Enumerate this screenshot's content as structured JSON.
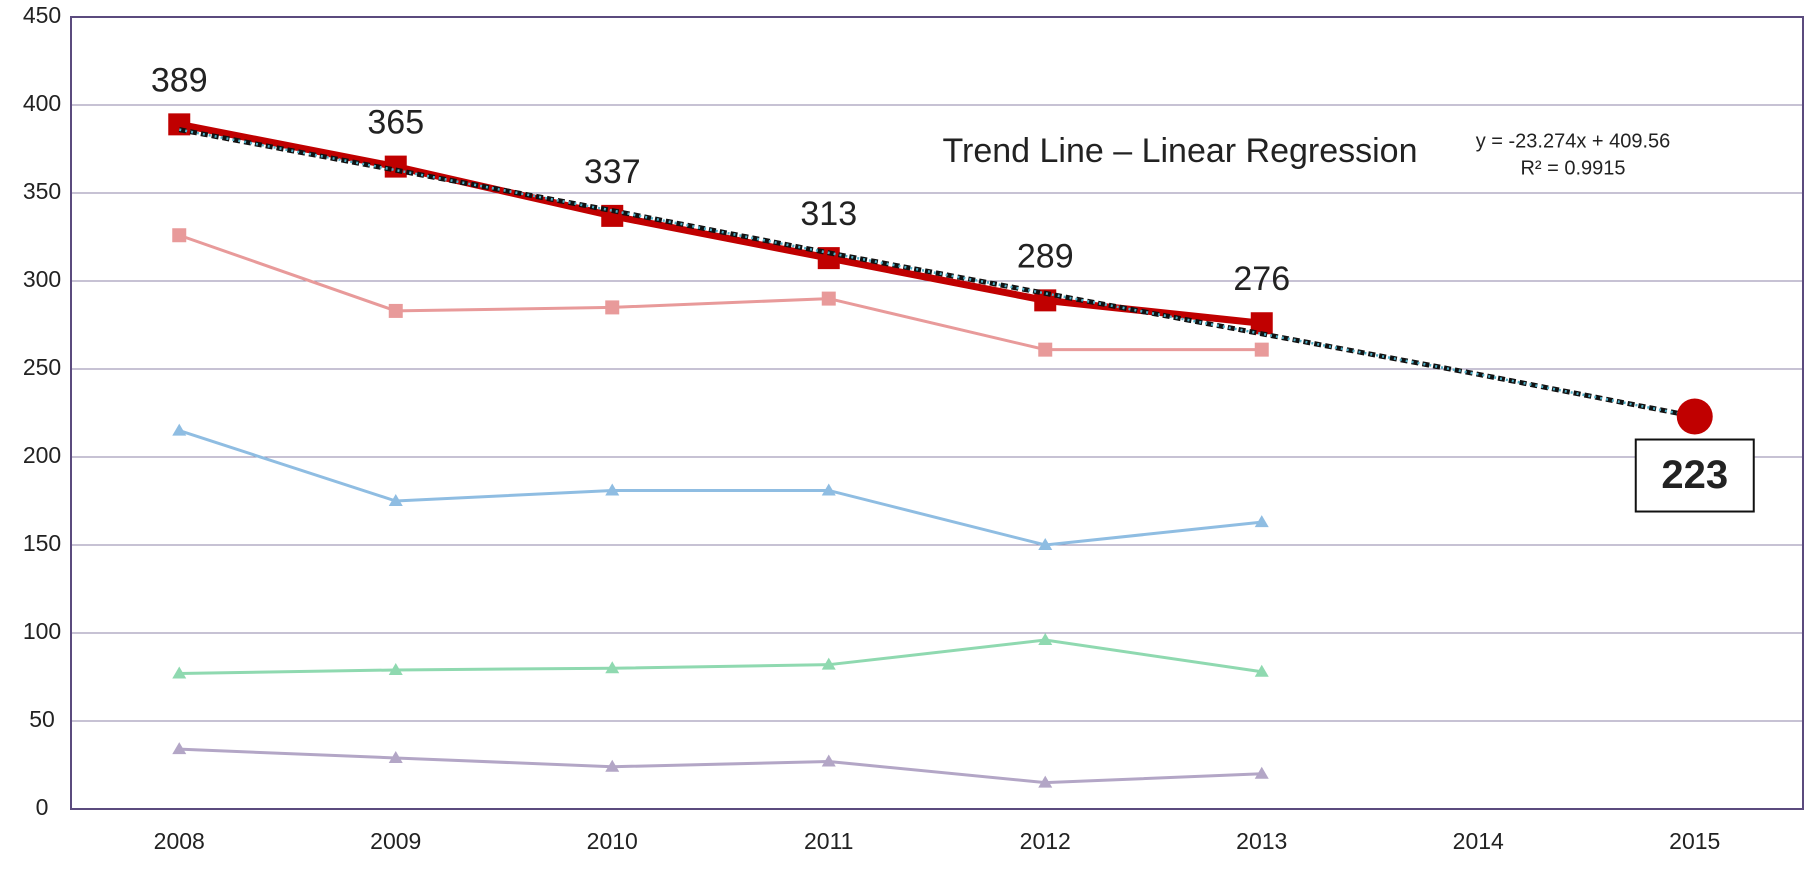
{
  "chart_data": {
    "type": "line",
    "title": "Trend Line – Linear Regression",
    "annotations": [
      "y = -23.274x + 409.56",
      "R² = 0.9915"
    ],
    "categories": [
      "2008",
      "2009",
      "2010",
      "2011",
      "2012",
      "2013",
      "2014",
      "2015"
    ],
    "series": [
      {
        "color": "#e89a9a",
        "marker": "square",
        "values": [
          326,
          283,
          285,
          290,
          261,
          261,
          null,
          null
        ]
      },
      {
        "color": "#8fbde2",
        "marker": "triangle",
        "values": [
          215,
          175,
          181,
          181,
          150,
          163,
          null,
          null
        ]
      },
      {
        "color": "#8fd9b0",
        "marker": "triangle",
        "values": [
          77,
          79,
          80,
          82,
          96,
          78,
          null,
          null
        ]
      },
      {
        "color": "#b3a6c6",
        "marker": "triangle",
        "values": [
          34,
          29,
          24,
          27,
          15,
          20,
          null,
          null
        ]
      },
      {
        "color": "#c00000",
        "marker": "bigsquare",
        "values": [
          389,
          365,
          337,
          313,
          289,
          276,
          null,
          null
        ],
        "value_labels": [
          "389",
          "365",
          "337",
          "313",
          "289",
          "276",
          null,
          null
        ]
      },
      {
        "color": "#4fb0c8",
        "marker": "trend",
        "values": [
          386,
          363,
          340,
          316,
          293,
          270,
          247,
          223
        ],
        "value_labels": [
          null,
          null,
          null,
          null,
          null,
          null,
          null,
          "223"
        ]
      }
    ],
    "ylim": [
      0,
      450
    ],
    "yticks": [
      0,
      50,
      100,
      150,
      200,
      250,
      300,
      350,
      400,
      450
    ],
    "grid": true
  }
}
